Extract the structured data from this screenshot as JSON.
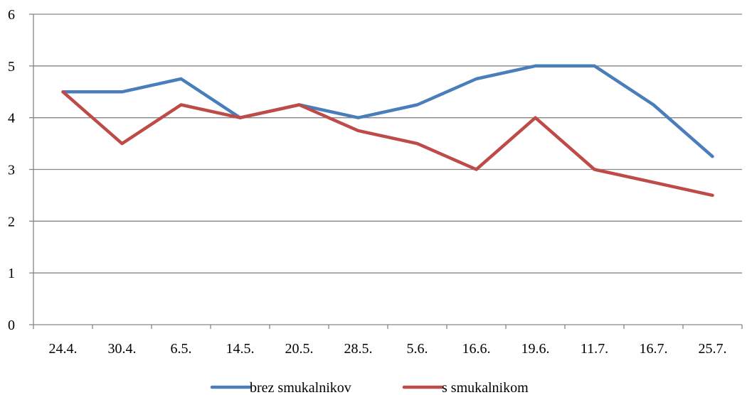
{
  "chart_data": {
    "type": "line",
    "title": "",
    "xlabel": "",
    "ylabel": "",
    "categories": [
      "24.4.",
      "30.4.",
      "6.5.",
      "14.5.",
      "20.5.",
      "28.5.",
      "5.6.",
      "16.6.",
      "19.6.",
      "11.7.",
      "16.7.",
      "25.7."
    ],
    "ylim": [
      0,
      6
    ],
    "yticks": [
      0,
      1,
      2,
      3,
      4,
      5,
      6
    ],
    "grid": "horizontal",
    "legend": "bottom",
    "series": [
      {
        "name": "brez smukalnikov",
        "color": "#4a7ebb",
        "values": [
          4.5,
          4.5,
          4.75,
          4.0,
          4.25,
          4.0,
          4.25,
          4.75,
          5.0,
          5.0,
          4.25,
          3.25
        ]
      },
      {
        "name": "s smukalnikom",
        "color": "#be4b48",
        "values": [
          4.5,
          3.5,
          4.25,
          4.0,
          4.25,
          3.75,
          3.5,
          3.0,
          4.0,
          3.0,
          2.75,
          2.5
        ]
      }
    ]
  }
}
